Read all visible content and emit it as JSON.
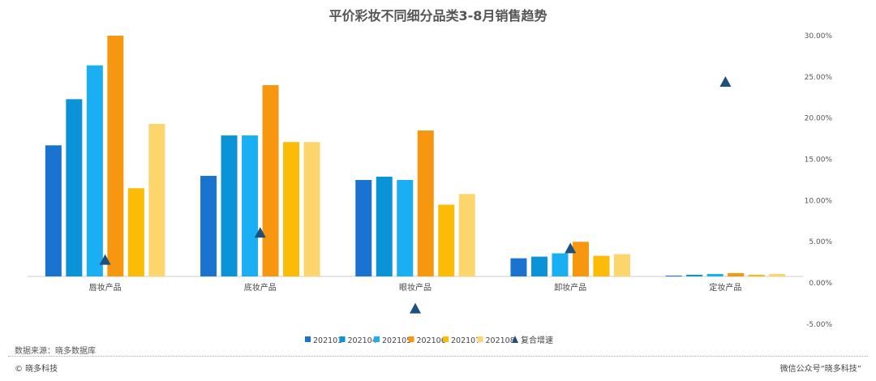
{
  "chart_data": {
    "type": "bar",
    "title": "平价彩妆不同细分品类3-8月销售趋势",
    "categories": [
      "唇妆产品",
      "底妆产品",
      "眼妆产品",
      "卸妆产品",
      "定妆产品"
    ],
    "series": [
      {
        "name": "202103",
        "color": "#1a73cf",
        "values": [
          15.9,
          12.2,
          11.7,
          2.2,
          0.1
        ]
      },
      {
        "name": "202104",
        "color": "#0a93d6",
        "values": [
          21.5,
          17.1,
          12.1,
          2.4,
          0.2
        ]
      },
      {
        "name": "202105",
        "color": "#1aaef3",
        "values": [
          25.6,
          17.1,
          11.7,
          2.8,
          0.3
        ]
      },
      {
        "name": "202106",
        "color": "#f7960f",
        "values": [
          29.2,
          23.2,
          17.7,
          4.2,
          0.4
        ]
      },
      {
        "name": "202107",
        "color": "#fbbb07",
        "values": [
          10.7,
          16.3,
          8.7,
          2.5,
          0.2
        ]
      },
      {
        "name": "202108",
        "color": "#fcd56c",
        "values": [
          18.5,
          16.3,
          10.0,
          2.7,
          0.3
        ]
      }
    ],
    "line_series": {
      "name": "复合增速",
      "color": "#1d4f7f",
      "marker": "triangle",
      "values": [
        2.0,
        5.3,
        -3.9,
        3.4,
        23.6
      ]
    },
    "y_axis": {
      "position": "right",
      "ylim": [
        -5,
        30
      ],
      "ticks": [
        "-5.00%",
        "0.00%",
        "5.00%",
        "10.00%",
        "15.00%",
        "20.00%",
        "25.00%",
        "30.00%"
      ]
    },
    "legend_placement": "bottom",
    "grid": false
  },
  "footer": {
    "source": "数据来源：晓多数据库",
    "copyright": "© 晓多科技",
    "wechat": "微信公众号“晓多科技”"
  }
}
